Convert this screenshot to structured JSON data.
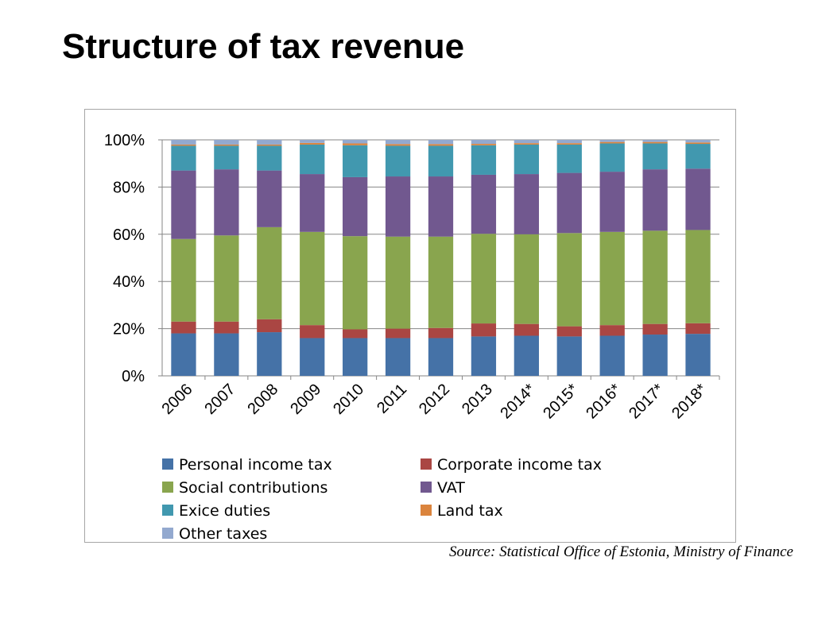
{
  "slide": {
    "title": "Structure of tax revenue",
    "source": "Source: Statistical Office of Estonia, Ministry of Finance"
  },
  "chart_data": {
    "type": "bar",
    "stacked": true,
    "percent": true,
    "categories": [
      "2006",
      "2007",
      "2008",
      "2009",
      "2010",
      "2011",
      "2012",
      "2013",
      "2014*",
      "2015*",
      "2016*",
      "2017*",
      "2018*"
    ],
    "y_ticks": [
      "0%",
      "20%",
      "40%",
      "60%",
      "80%",
      "100%"
    ],
    "ylim": [
      0,
      100
    ],
    "grid": true,
    "legend": "bottom",
    "series": [
      {
        "name": "Personal income tax",
        "color": "#4572A7",
        "values": [
          18,
          18,
          18.5,
          16,
          16,
          16,
          16,
          16.7,
          17,
          16.7,
          17,
          17.5,
          17.8
        ]
      },
      {
        "name": "Corporate income tax",
        "color": "#AA4643",
        "values": [
          5,
          5,
          5.5,
          5.5,
          3.7,
          4,
          4.3,
          5.5,
          5,
          4.3,
          4.5,
          4.5,
          4.5
        ]
      },
      {
        "name": "Social contributions",
        "color": "#89A54E",
        "values": [
          35,
          36.5,
          39,
          39.5,
          39.5,
          39,
          38.7,
          38,
          38,
          39.5,
          39.5,
          39.5,
          39.5
        ]
      },
      {
        "name": "VAT",
        "color": "#71588F",
        "values": [
          29,
          28,
          24,
          24.5,
          25,
          25.5,
          25.5,
          25,
          25.5,
          25.5,
          25.5,
          26,
          26
        ]
      },
      {
        "name": "Exice duties",
        "color": "#4198AF",
        "values": [
          10.5,
          10,
          10.5,
          12.5,
          13.5,
          13,
          13,
          12.5,
          12.5,
          12,
          12,
          11,
          10.5
        ]
      },
      {
        "name": "Land tax",
        "color": "#DB843D",
        "values": [
          0.5,
          0.5,
          0.5,
          0.7,
          0.8,
          0.7,
          0.7,
          0.6,
          0.6,
          0.6,
          0.6,
          0.6,
          0.6
        ]
      },
      {
        "name": "Other taxes",
        "color": "#93A9CF",
        "values": [
          2,
          2,
          2,
          1.3,
          1.5,
          1.8,
          1.8,
          1.7,
          1.4,
          1.4,
          0.9,
          0.9,
          1.1
        ]
      }
    ]
  }
}
